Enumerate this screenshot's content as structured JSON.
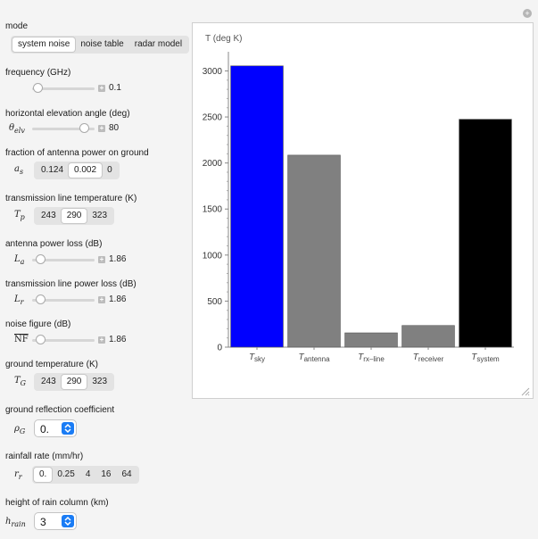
{
  "controls": {
    "mode": {
      "label": "mode",
      "options": [
        "system noise",
        "noise table",
        "radar model"
      ],
      "selected": 0
    },
    "frequency": {
      "label": "frequency (GHz)",
      "value": "0.1",
      "fraction": 0.05
    },
    "elevation": {
      "label": "horizontal elevation angle (deg)",
      "symbol": "θ",
      "sub": "elv",
      "value": "80",
      "fraction": 0.88
    },
    "antenna_ground": {
      "label": "fraction of antenna power on ground",
      "symbol": "a",
      "sub": "s",
      "options": [
        "0.124",
        "0.002",
        "0"
      ],
      "selected": 1
    },
    "line_temp": {
      "label": "transmission line temperature (K)",
      "symbol": "T",
      "sub": "p",
      "options": [
        "243",
        "290",
        "323"
      ],
      "selected": 1
    },
    "antenna_loss": {
      "label": "antenna power loss (dB)",
      "symbol": "L",
      "sub": "a",
      "value": "1.86",
      "fraction": 0.05
    },
    "line_loss": {
      "label": "transmission line power loss (dB)",
      "symbol": "L",
      "sub": "r",
      "value": "1.86",
      "fraction": 0.05
    },
    "noise_figure": {
      "label": "noise figure (dB)",
      "symbol": "NF",
      "value": "1.86",
      "fraction": 0.05
    },
    "ground_temp": {
      "label": "ground temperature (K)",
      "symbol": "T",
      "sub": "G",
      "options": [
        "243",
        "290",
        "323"
      ],
      "selected": 1
    },
    "ground_refl": {
      "label": "ground reflection coefficient",
      "symbol": "ρ",
      "sub": "G",
      "value": "0."
    },
    "rainfall": {
      "label": "rainfall rate (mm/hr)",
      "symbol": "r",
      "sub": "r",
      "options": [
        "0.",
        "0.25",
        "4",
        "16",
        "64"
      ],
      "selected": 0
    },
    "rain_height": {
      "label": "height of rain column (km)",
      "symbol": "h",
      "sub": "rain",
      "value": "3"
    }
  },
  "icons": {
    "options": "plus-circle-icon",
    "resize": "resize-grip-icon",
    "stepper": "plus-icon",
    "popup": "chevron-updown-icon"
  },
  "chart_data": {
    "type": "bar",
    "ylabel": "T (deg K)",
    "ylim": [
      0,
      3150
    ],
    "yticks": [
      0,
      500,
      1000,
      1500,
      2000,
      2500,
      3000
    ],
    "yticklabels": [
      "0",
      "500",
      "1000",
      "1500",
      "2000",
      "2500",
      "3000"
    ],
    "categories": [
      {
        "main": "T",
        "sub": "sky"
      },
      {
        "main": "T",
        "sub": "antenna"
      },
      {
        "main": "T",
        "sub": "rx–line"
      },
      {
        "main": "T",
        "sub": "receiver"
      },
      {
        "main": "T",
        "sub": "system"
      }
    ],
    "values": [
      3055,
      2085,
      155,
      235,
      2475
    ],
    "colors": [
      "#0000ff",
      "#808080",
      "#808080",
      "#808080",
      "#000000"
    ]
  }
}
